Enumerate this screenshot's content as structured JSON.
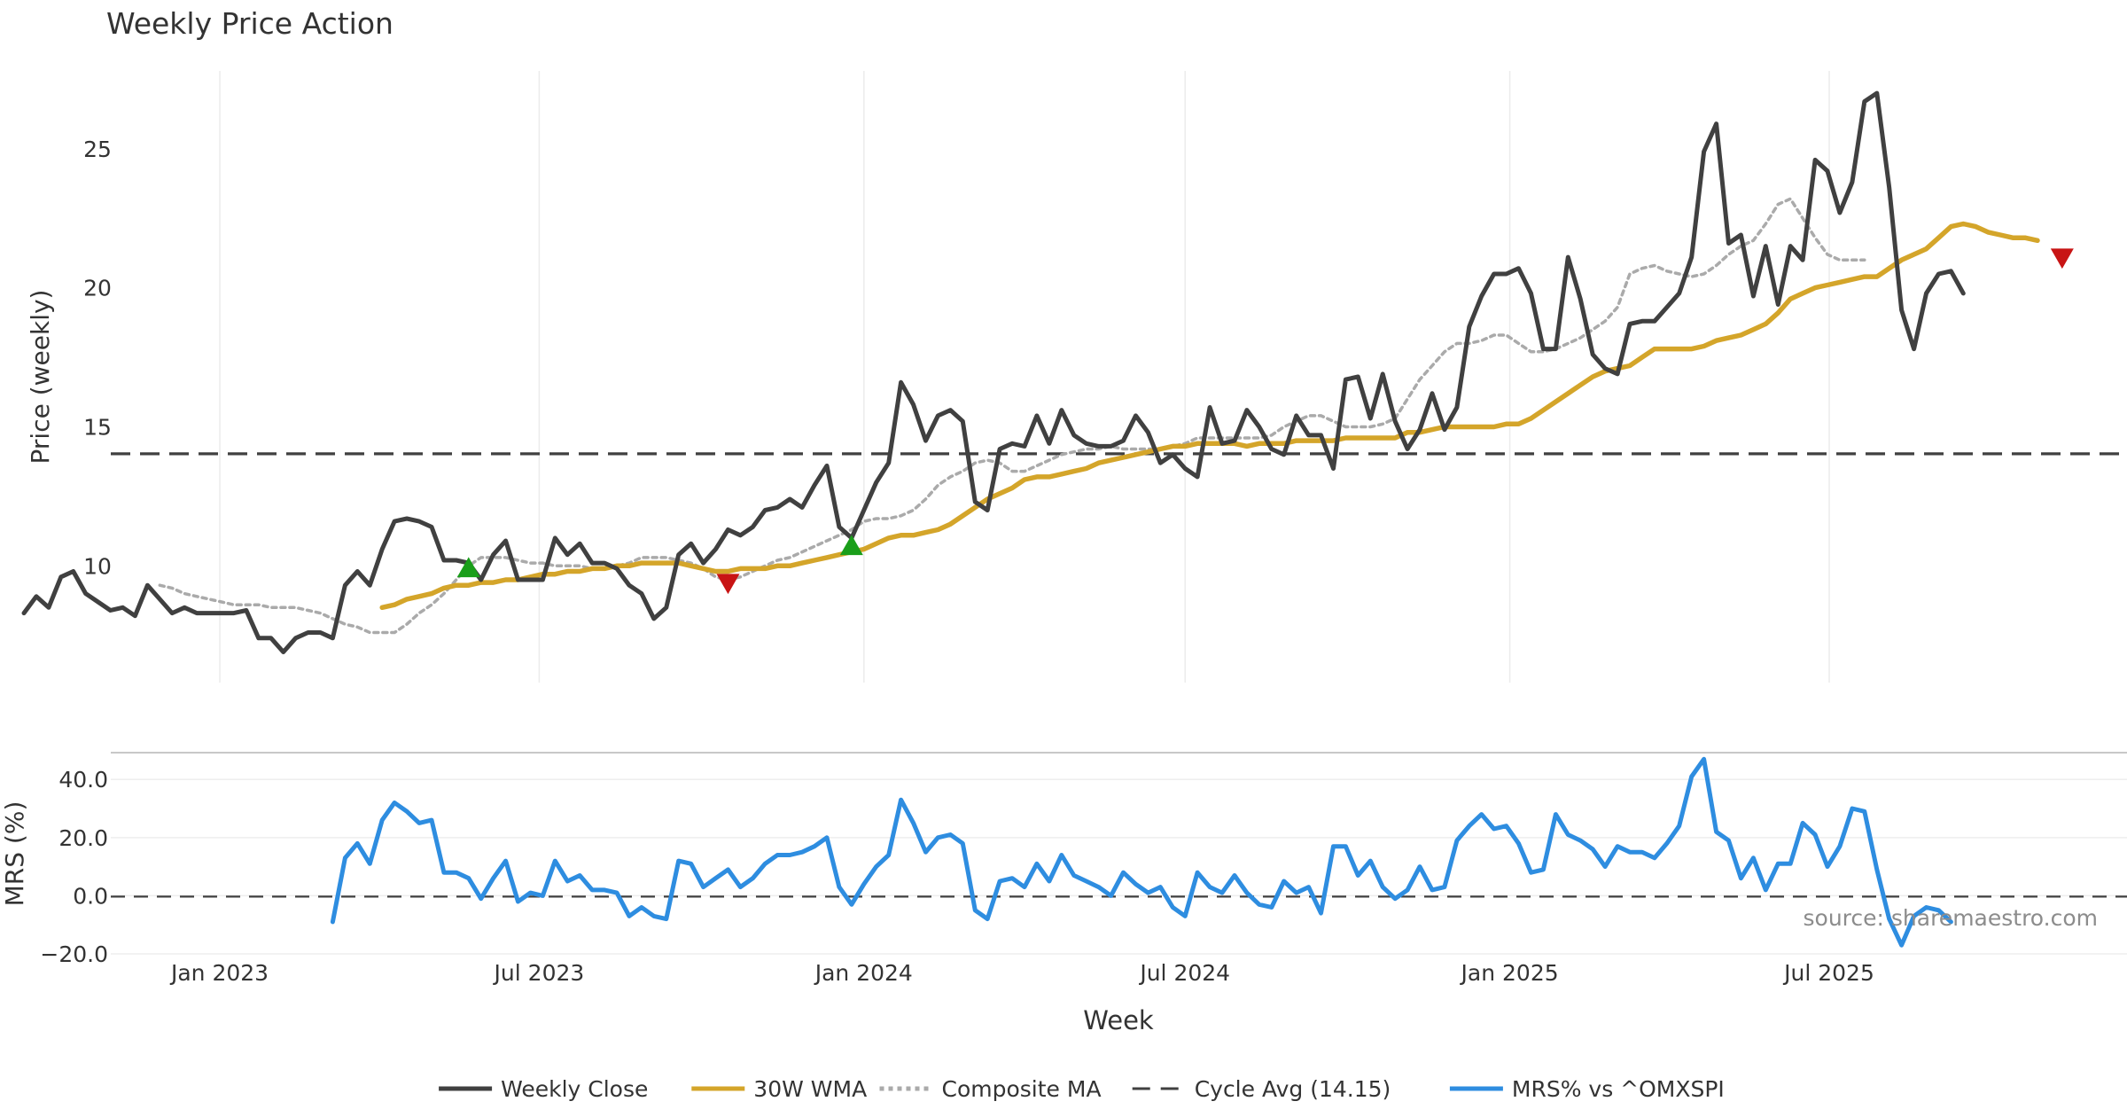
{
  "chart_data": [
    {
      "type": "line",
      "title": "Weekly Price Action",
      "xlabel": "",
      "ylabel": "Price (weekly)",
      "x_range": [
        "2022-09-12",
        "2026-01-12"
      ],
      "ylim": [
        5.8,
        27.8
      ],
      "yticks": [
        10,
        15,
        20,
        25
      ],
      "yticklabels": [
        "10",
        "15",
        "20",
        "25"
      ],
      "x_gridlines": [
        "Jan 2023",
        "Jul 2023",
        "Jan 2024",
        "Jul 2024",
        "Jan 2025",
        "Jul 2025"
      ],
      "grid": true,
      "series": [
        {
          "name": "Weekly Close",
          "color": "#404040",
          "style": "solid",
          "start": "2022-09-12",
          "values": [
            8.3,
            8.9,
            8.5,
            9.6,
            9.8,
            9.0,
            8.7,
            8.4,
            8.5,
            8.2,
            9.3,
            8.8,
            8.3,
            8.5,
            8.3,
            8.3,
            8.3,
            8.3,
            8.4,
            7.4,
            7.4,
            6.9,
            7.4,
            7.6,
            7.6,
            7.4,
            9.3,
            9.8,
            9.3,
            10.6,
            11.6,
            11.7,
            11.6,
            11.4,
            10.2,
            10.2,
            10.1,
            9.5,
            10.4,
            10.9,
            9.5,
            9.5,
            9.5,
            11.0,
            10.4,
            10.8,
            10.1,
            10.1,
            9.9,
            9.3,
            9.0,
            8.1,
            8.5,
            10.4,
            10.8,
            10.1,
            10.6,
            11.3,
            11.1,
            11.4,
            12.0,
            12.1,
            12.4,
            12.1,
            12.9,
            13.6,
            11.4,
            11.0,
            12.0,
            13.0,
            13.7,
            16.6,
            15.8,
            14.5,
            15.4,
            15.6,
            15.2,
            12.3,
            12.0,
            14.2,
            14.4,
            14.3,
            15.4,
            14.4,
            15.6,
            14.7,
            14.4,
            14.3,
            14.3,
            14.5,
            15.4,
            14.8,
            13.7,
            14.0,
            13.5,
            13.2,
            15.7,
            14.4,
            14.5,
            15.6,
            15.0,
            14.2,
            14.0,
            15.4,
            14.7,
            14.7,
            13.5,
            16.7,
            16.8,
            15.3,
            16.9,
            15.2,
            14.2,
            14.9,
            16.2,
            14.9,
            15.7,
            18.6,
            19.7,
            20.5,
            20.5,
            20.7,
            19.8,
            17.8,
            17.8,
            21.1,
            19.6,
            17.6,
            17.1,
            16.9,
            18.7,
            18.8,
            18.8,
            19.3,
            19.8,
            21.1,
            24.9,
            25.9,
            21.6,
            21.9,
            19.7,
            21.5,
            19.4,
            21.5,
            21.0,
            24.6,
            24.2,
            22.7,
            23.8,
            26.7,
            27.0,
            23.6,
            19.2,
            17.8,
            19.8,
            20.5,
            20.6,
            19.8
          ]
        },
        {
          "name": "30W WMA",
          "color": "#d4a52a",
          "style": "solid",
          "start": "2023-04-03",
          "values": [
            8.5,
            8.6,
            8.8,
            8.9,
            9.0,
            9.2,
            9.3,
            9.3,
            9.4,
            9.4,
            9.5,
            9.5,
            9.6,
            9.7,
            9.7,
            9.8,
            9.8,
            9.9,
            9.9,
            10.0,
            10.0,
            10.1,
            10.1,
            10.1,
            10.1,
            10.0,
            9.9,
            9.8,
            9.8,
            9.9,
            9.9,
            9.9,
            10.0,
            10.0,
            10.1,
            10.2,
            10.3,
            10.4,
            10.5,
            10.6,
            10.8,
            11.0,
            11.1,
            11.1,
            11.2,
            11.3,
            11.5,
            11.8,
            12.1,
            12.4,
            12.6,
            12.8,
            13.1,
            13.2,
            13.2,
            13.3,
            13.4,
            13.5,
            13.7,
            13.8,
            13.9,
            14.0,
            14.1,
            14.2,
            14.3,
            14.3,
            14.4,
            14.4,
            14.4,
            14.4,
            14.3,
            14.4,
            14.4,
            14.4,
            14.5,
            14.5,
            14.5,
            14.5,
            14.6,
            14.6,
            14.6,
            14.6,
            14.6,
            14.8,
            14.8,
            14.9,
            15.0,
            15.0,
            15.0,
            15.0,
            15.0,
            15.1,
            15.1,
            15.3,
            15.6,
            15.9,
            16.2,
            16.5,
            16.8,
            17.0,
            17.1,
            17.2,
            17.5,
            17.8,
            17.8,
            17.8,
            17.8,
            17.9,
            18.1,
            18.2,
            18.3,
            18.5,
            18.7,
            19.1,
            19.6,
            19.8,
            20.0,
            20.1,
            20.2,
            20.3,
            20.4,
            20.4,
            20.7,
            21.0,
            21.2,
            21.4,
            21.8,
            22.2,
            22.3,
            22.2,
            22.0,
            21.9,
            21.8,
            21.8,
            21.7
          ]
        },
        {
          "name": "Composite MA",
          "color": "#aaaaaa",
          "style": "dotted",
          "start": "2022-11-28",
          "values": [
            9.3,
            9.2,
            9.0,
            8.9,
            8.8,
            8.7,
            8.6,
            8.6,
            8.6,
            8.5,
            8.5,
            8.5,
            8.4,
            8.3,
            8.1,
            7.9,
            7.8,
            7.6,
            7.6,
            7.6,
            7.9,
            8.3,
            8.6,
            9.0,
            9.5,
            10.0,
            10.3,
            10.3,
            10.3,
            10.2,
            10.1,
            10.1,
            10.0,
            10.0,
            10.0,
            9.9,
            9.9,
            10.0,
            10.1,
            10.3,
            10.3,
            10.3,
            10.2,
            10.1,
            9.9,
            9.6,
            9.5,
            9.6,
            9.8,
            10.0,
            10.2,
            10.3,
            10.5,
            10.7,
            10.9,
            11.1,
            11.3,
            11.6,
            11.7,
            11.7,
            11.8,
            12.0,
            12.4,
            12.9,
            13.2,
            13.4,
            13.7,
            13.8,
            13.7,
            13.4,
            13.4,
            13.6,
            13.8,
            14.0,
            14.1,
            14.2,
            14.2,
            14.3,
            14.2,
            14.2,
            14.2,
            14.2,
            14.3,
            14.4,
            14.6,
            14.6,
            14.6,
            14.6,
            14.6,
            14.6,
            14.7,
            15.0,
            15.2,
            15.4,
            15.4,
            15.2,
            15.0,
            15.0,
            15.0,
            15.1,
            15.3,
            16.0,
            16.7,
            17.2,
            17.7,
            18.0,
            18.0,
            18.1,
            18.3,
            18.3,
            18.0,
            17.7,
            17.7,
            17.8,
            18.0,
            18.2,
            18.5,
            18.8,
            19.3,
            20.5,
            20.7,
            20.8,
            20.6,
            20.5,
            20.4,
            20.5,
            20.8,
            21.2,
            21.5,
            21.7,
            22.3,
            23.0,
            23.2,
            22.5,
            21.8,
            21.2,
            21.0,
            21.0,
            21.0
          ]
        },
        {
          "name": "Cycle Avg (14.15)",
          "color": "#404040",
          "style": "dashed",
          "value": 14.15
        }
      ],
      "markers": [
        {
          "type": "buy",
          "date": "2023-05-22",
          "value": 9.9,
          "color": "#1a9e1a"
        },
        {
          "type": "sell",
          "date": "2023-10-16",
          "value": 9.4,
          "color": "#c81414"
        },
        {
          "type": "buy",
          "date": "2023-12-25",
          "value": 10.7,
          "color": "#1a9e1a"
        },
        {
          "type": "sell",
          "date": "2025-11-10",
          "value": 21.1,
          "color": "#c81414"
        }
      ]
    },
    {
      "type": "line",
      "title": "",
      "xlabel": "Week",
      "ylabel": "MRS (%)",
      "ylim": [
        -20,
        48
      ],
      "yticks": [
        -20,
        0,
        20,
        40
      ],
      "yticklabels": [
        "−20.0",
        "0.0",
        "20.0",
        "40.0"
      ],
      "xticklabels": [
        "Jan 2023",
        "Jul 2023",
        "Jan 2024",
        "Jul 2024",
        "Jan 2025",
        "Jul 2025"
      ],
      "zero_line": 0,
      "grid": true,
      "annotation": "source: sharemaestro.com",
      "series": [
        {
          "name": "MRS% vs ^OMXSPI",
          "color": "#2e8de0",
          "style": "solid",
          "start": "2023-03-06",
          "values": [
            -9,
            13,
            18,
            11,
            26,
            32,
            29,
            25,
            26,
            8,
            8,
            6,
            -1,
            6,
            12,
            -2,
            1,
            0,
            12,
            5,
            7,
            2,
            2,
            1,
            -7,
            -4,
            -7,
            -8,
            12,
            11,
            3,
            6,
            9,
            3,
            6,
            11,
            14,
            14,
            15,
            17,
            20,
            3,
            -3,
            4,
            10,
            14,
            33,
            25,
            15,
            20,
            21,
            18,
            -5,
            -8,
            5,
            6,
            3,
            11,
            5,
            14,
            7,
            5,
            3,
            0,
            8,
            4,
            1,
            3,
            -4,
            -7,
            8,
            3,
            1,
            7,
            1,
            -3,
            -4,
            5,
            1,
            3,
            -6,
            17,
            17,
            7,
            12,
            3,
            -1,
            2,
            10,
            2,
            3,
            19,
            24,
            28,
            23,
            24,
            18,
            8,
            9,
            28,
            21,
            19,
            16,
            10,
            17,
            15,
            15,
            13,
            18,
            24,
            41,
            47,
            22,
            19,
            6,
            13,
            2,
            11,
            11,
            25,
            21,
            10,
            17,
            30,
            29,
            9,
            -8,
            -17,
            -7,
            -4,
            -5,
            -9
          ]
        }
      ]
    }
  ],
  "legend": {
    "placement": "bottom",
    "entries": [
      {
        "label": "Weekly Close",
        "color": "#404040",
        "style": "solid"
      },
      {
        "label": "30W WMA",
        "color": "#d4a52a",
        "style": "solid"
      },
      {
        "label": "Composite MA",
        "color": "#aaaaaa",
        "style": "dotted"
      },
      {
        "label": "Cycle Avg (14.15)",
        "color": "#404040",
        "style": "dashed"
      },
      {
        "label": "MRS% vs ^OMXSPI",
        "color": "#2e8de0",
        "style": "solid"
      }
    ]
  }
}
